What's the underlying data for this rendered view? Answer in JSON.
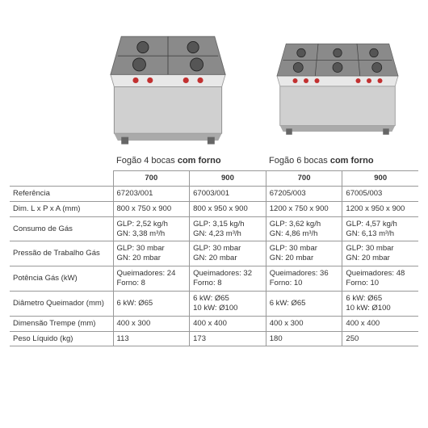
{
  "products": [
    {
      "title_prefix": "Fogão 4 bocas ",
      "title_bold": "com forno"
    },
    {
      "title_prefix": "Fogão 6 bocas ",
      "title_bold": "com forno"
    }
  ],
  "columns": [
    "700",
    "900",
    "700",
    "900"
  ],
  "rows": [
    {
      "label": "Referência",
      "cells": [
        "67203/001",
        "67003/001",
        "67205/003",
        "67005/003"
      ]
    },
    {
      "label": "Dim. L x P x A (mm)",
      "cells": [
        "800 x 750 x 900",
        "800 x 950 x 900",
        "1200 x 750 x 900",
        "1200 x 950 x 900"
      ]
    },
    {
      "label": "Consumo de Gás",
      "cells": [
        "GLP: 2,52 kg/h\nGN: 3,38 m³/h",
        "GLP: 3,15 kg/h\nGN: 4,23 m³/h",
        "GLP: 3,62 kg/h\nGN: 4,86 m³/h",
        "GLP: 4,57 kg/h\nGN: 6,13 m³/h"
      ]
    },
    {
      "label": "Pressão de Trabalho Gás",
      "cells": [
        "GLP: 30 mbar\nGN: 20 mbar",
        "GLP: 30 mbar\nGN: 20 mbar",
        "GLP: 30 mbar\nGN: 20 mbar",
        "GLP: 30 mbar\nGN: 20 mbar"
      ]
    },
    {
      "label": "Potência Gás (kW)",
      "cells": [
        "Queimadores: 24\nForno: 8",
        "Queimadores: 32\nForno: 8",
        "Queimadores: 36\nForno: 10",
        "Queimadores: 48\nForno: 10"
      ]
    },
    {
      "label": "Diâmetro Queimador (mm)",
      "cells": [
        "6 kW: Ø65",
        "6 kW: Ø65\n10 kW: Ø100",
        "6 kW: Ø65",
        "6 kW: Ø65\n10 kW: Ø100"
      ]
    },
    {
      "label": "Dimensão Trempe (mm)",
      "cells": [
        "400 x 300",
        "400 x 400",
        "400 x 300",
        "400 x 400"
      ]
    },
    {
      "label": "Peso Líquido (kg)",
      "cells": [
        "113",
        "173",
        "180",
        "250"
      ]
    }
  ],
  "style": {
    "stove_metal": "#d9d9d9",
    "stove_metal_dark": "#a8a8a8",
    "stove_top": "#777",
    "knob": "#c23030",
    "border_color": "#999",
    "text_color": "#333",
    "font_size_table": 9.5,
    "font_size_title": 11
  }
}
